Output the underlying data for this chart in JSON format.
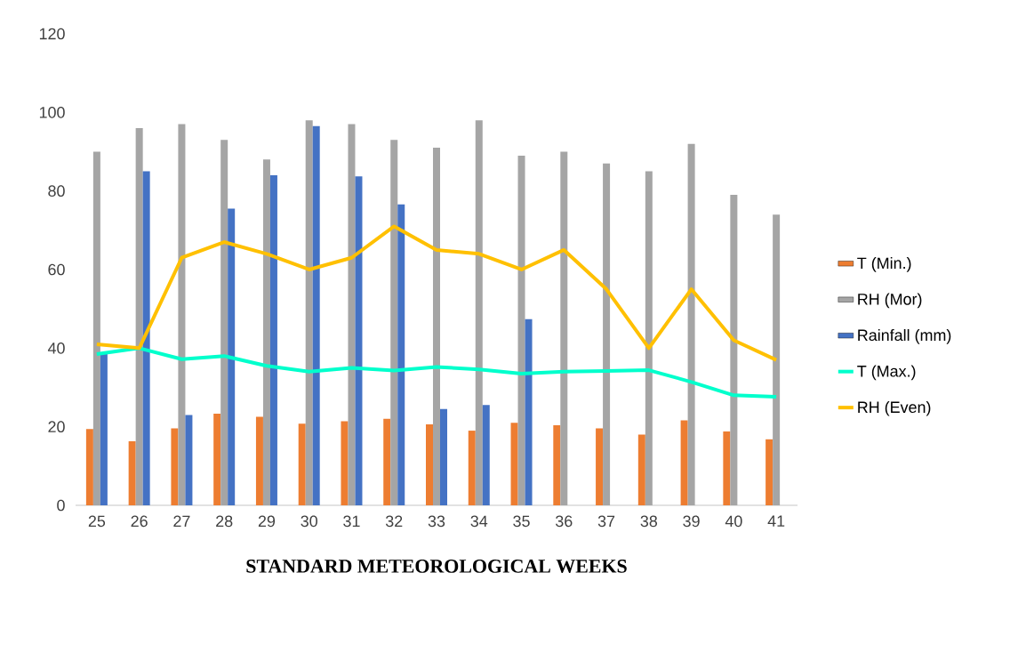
{
  "chart_data": {
    "type": "bar",
    "xlabel": "STANDARD METEOROLOGICAL WEEKS",
    "categories": [
      "25",
      "26",
      "27",
      "28",
      "29",
      "30",
      "31",
      "32",
      "33",
      "34",
      "35",
      "36",
      "37",
      "38",
      "39",
      "40",
      "41"
    ],
    "series": [
      {
        "name": "T (Min.)",
        "type": "bar",
        "color": "#ed7d31",
        "values": [
          19.4,
          16.3,
          19.6,
          23.3,
          22.5,
          20.8,
          21.4,
          22,
          20.6,
          19,
          21,
          20.4,
          19.6,
          18,
          21.6,
          18.8,
          16.8
        ]
      },
      {
        "name": "RH (Mor)",
        "type": "bar",
        "color": "#a5a5a5",
        "values": [
          90,
          96,
          97,
          93,
          88,
          98,
          97,
          93,
          91,
          98,
          89,
          90,
          87,
          85,
          92,
          79,
          74
        ]
      },
      {
        "name": "Rainfall (mm)",
        "type": "bar",
        "color": "#4472c4",
        "values": [
          38.5,
          85,
          23,
          75.5,
          84,
          96.5,
          83.7,
          76.6,
          24.5,
          25.5,
          47.4,
          0,
          0,
          0,
          0,
          0,
          0
        ]
      },
      {
        "name": "T (Max.)",
        "type": "line",
        "color": "#00ffcc",
        "values": [
          38.5,
          40,
          37.2,
          38,
          35.5,
          34,
          35,
          34.3,
          35.2,
          34.6,
          33.5,
          34,
          34.2,
          34.4,
          31.4,
          28,
          27.6
        ]
      },
      {
        "name": "RH (Even)",
        "type": "line",
        "color": "#ffc000",
        "values": [
          41,
          40,
          63,
          67,
          64,
          60,
          63,
          71,
          65,
          64,
          60,
          65,
          55,
          40,
          55,
          42,
          37
        ]
      }
    ],
    "ylim": [
      0,
      120
    ],
    "yticks": [
      0,
      20,
      40,
      60,
      80,
      100,
      120
    ],
    "grid": false,
    "legend": "right",
    "marker": "none",
    "line_style": "solid"
  }
}
